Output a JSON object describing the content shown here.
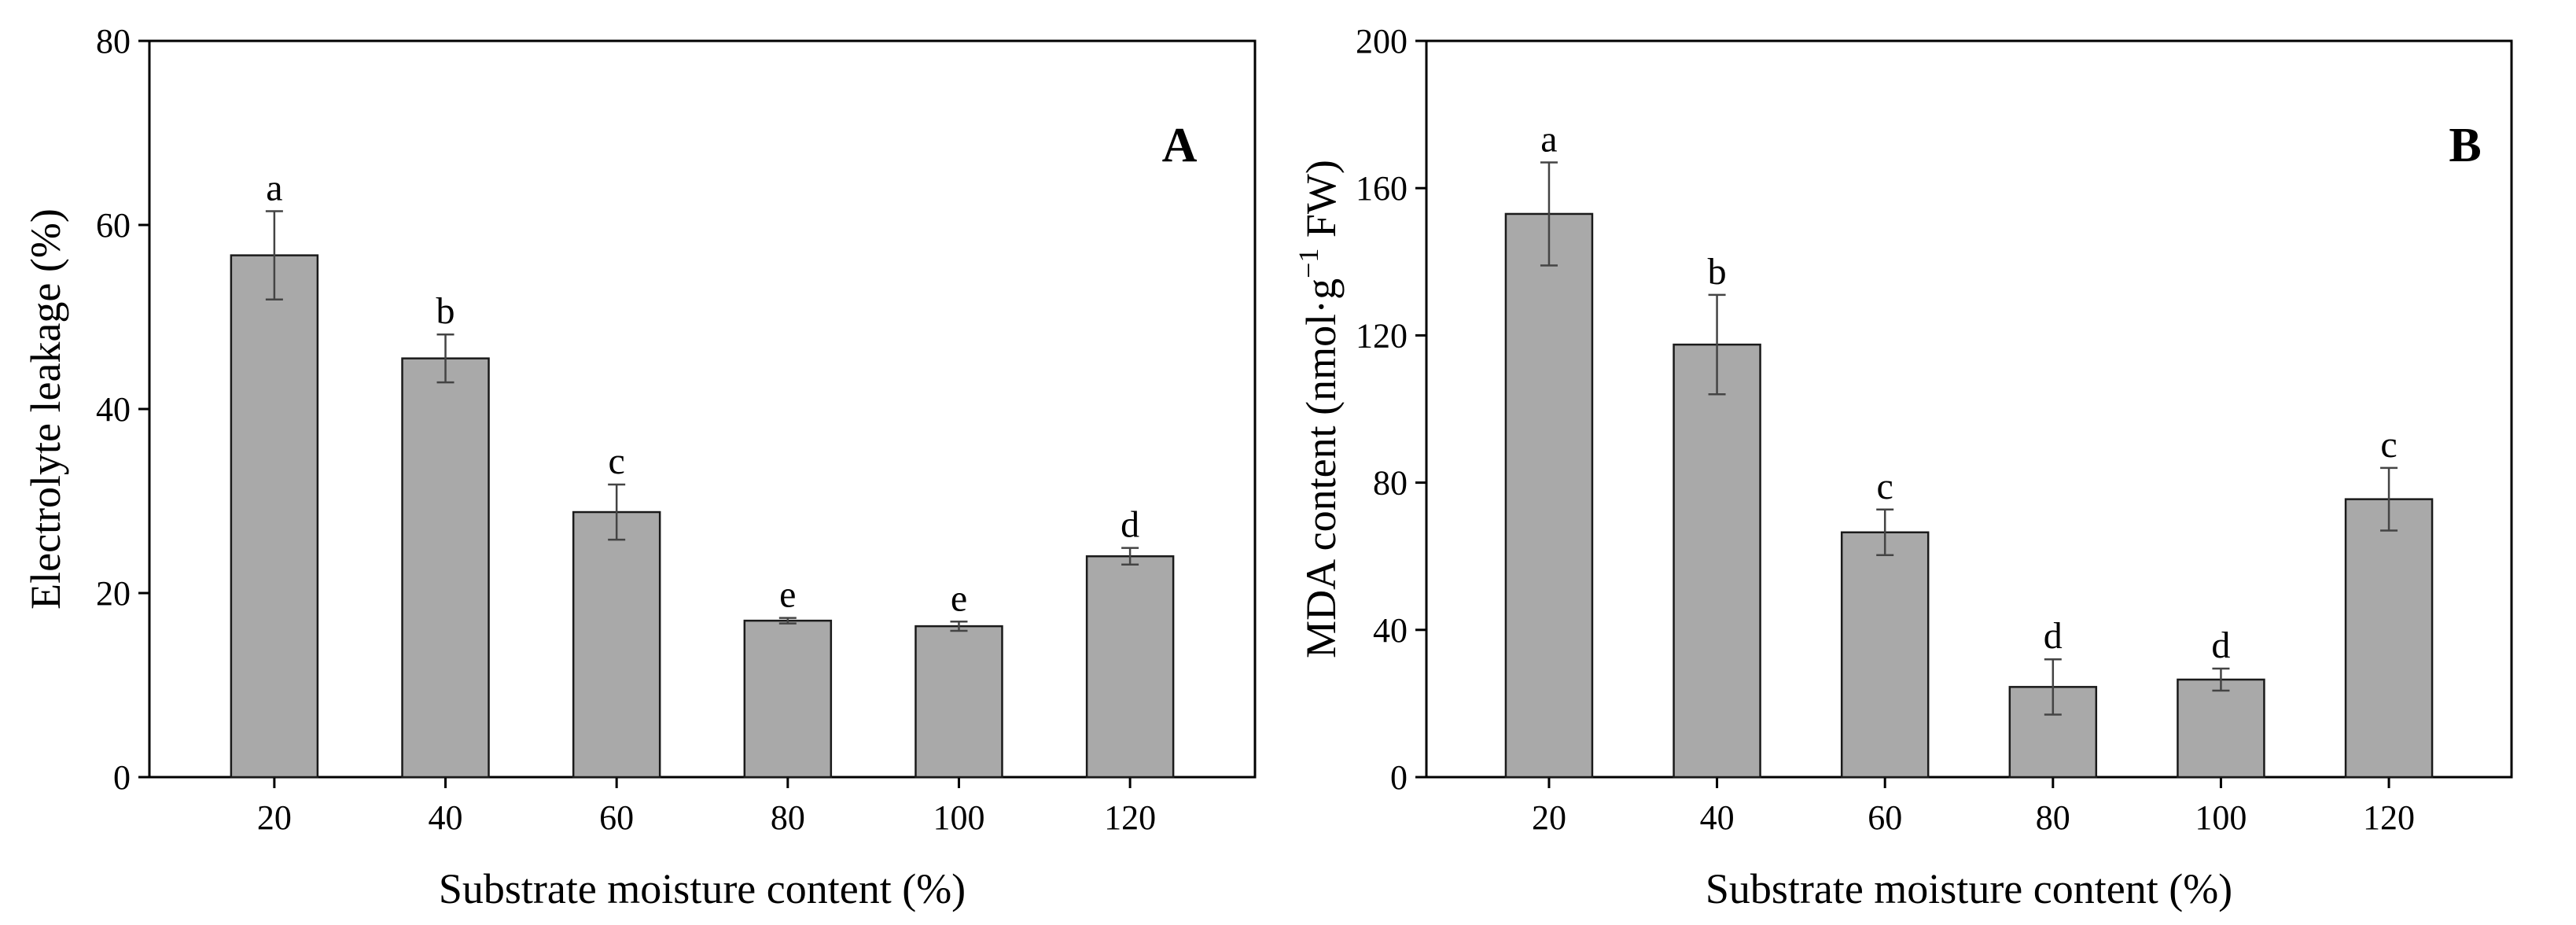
{
  "chart_data": [
    {
      "type": "bar",
      "panel_label": "A",
      "categories": [
        "20",
        "40",
        "60",
        "80",
        "100",
        "120"
      ],
      "values": [
        56.7,
        45.5,
        28.8,
        17.0,
        16.4,
        24.0
      ],
      "errors": [
        4.8,
        2.6,
        3.0,
        0.3,
        0.5,
        0.9
      ],
      "significance": [
        "a",
        "b",
        "c",
        "e",
        "e",
        "d"
      ],
      "xlabel": "Substrate moisture content (%)",
      "ylabel": "Electrolyte leakage (%)",
      "ylim": [
        0,
        80
      ],
      "yticks": [
        0,
        20,
        40,
        60,
        80
      ]
    },
    {
      "type": "bar",
      "panel_label": "B",
      "categories": [
        "20",
        "40",
        "60",
        "80",
        "100",
        "120"
      ],
      "values": [
        153,
        117.5,
        66.5,
        24.5,
        26.5,
        75.5
      ],
      "errors": [
        14,
        13.5,
        6.2,
        7.5,
        3.0,
        8.5
      ],
      "significance": [
        "a",
        "b",
        "c",
        "d",
        "d",
        "c"
      ],
      "xlabel": "Substrate moisture content (%)",
      "ylabel": "MDA content (nmol·g⁻¹ FW)",
      "ylim": [
        0,
        200
      ],
      "yticks": [
        0,
        40,
        80,
        120,
        160,
        200
      ]
    }
  ]
}
